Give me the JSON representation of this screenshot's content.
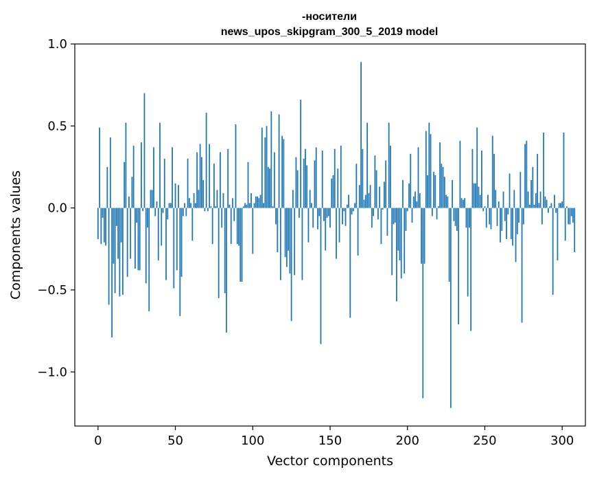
{
  "chart_data": {
    "type": "bar",
    "title_lines": [
      "-носители",
      "news_upos_skipgram_300_5_2019 model"
    ],
    "xlabel": "Vector components",
    "ylabel": "Components values",
    "xlim": [
      -15,
      315
    ],
    "ylim": [
      -1.33,
      1.0
    ],
    "x_ticks": [
      {
        "value": 0,
        "label": "0"
      },
      {
        "value": 50,
        "label": "50"
      },
      {
        "value": 100,
        "label": "100"
      },
      {
        "value": 150,
        "label": "150"
      },
      {
        "value": 200,
        "label": "200"
      },
      {
        "value": 250,
        "label": "250"
      },
      {
        "value": 300,
        "label": "300"
      }
    ],
    "y_ticks": [
      {
        "value": 1.0,
        "label": "1.0"
      },
      {
        "value": 0.5,
        "label": "0.5"
      },
      {
        "value": 0.0,
        "label": "0.0"
      },
      {
        "value": -0.5,
        "label": "−0.5"
      },
      {
        "value": -1.0,
        "label": "−1.0"
      }
    ],
    "grid": false,
    "bar_color": "#1f77b4",
    "values": [
      -0.19,
      0.49,
      -0.22,
      -0.06,
      -0.21,
      -0.23,
      0.25,
      -0.59,
      0.43,
      -0.79,
      -0.34,
      -0.52,
      -0.11,
      -0.31,
      -0.54,
      -0.21,
      -0.53,
      0.28,
      0.52,
      -0.42,
      0.07,
      -0.31,
      0.19,
      0.38,
      -0.37,
      -0.09,
      -0.38,
      -0.38,
      0.4,
      -0.02,
      0.7,
      -0.46,
      -0.12,
      -0.63,
      0.11,
      0.11,
      0.37,
      -0.05,
      0.04,
      -0.32,
      0.52,
      -0.23,
      -0.03,
      0.3,
      -0.44,
      -0.07,
      0.03,
      0.03,
      0.37,
      -0.49,
      0.15,
      -0.38,
      0.14,
      -0.66,
      -0.42,
      -0.05,
      0.03,
      -0.05,
      0.3,
      0.06,
      0.03,
      -0.2,
      0.09,
      0.03,
      0.34,
      0.11,
      0.39,
      0.31,
      0.17,
      -0.02,
      0.58,
      -0.02,
      0.39,
      0.01,
      -0.22,
      0.27,
      0.01,
      0.11,
      -0.55,
      0.34,
      -0.12,
      0.09,
      -0.52,
      -0.76,
      0.36,
      0.02,
      -0.22,
      0.06,
      -0.08,
      0.51,
      -0.22,
      -0.23,
      -0.45,
      -0.45,
      0.01,
      0.03,
      0.02,
      0.28,
      0.03,
      0.09,
      -0.28,
      0.03,
      0.07,
      0.07,
      0.06,
      0.08,
      0.49,
      0.03,
      0.43,
      0.5,
      0.25,
      0.24,
      0.59,
      0.01,
      0.34,
      -0.1,
      -0.27,
      0.57,
      -0.44,
      0.44,
      0.42,
      -0.3,
      -0.36,
      -0.26,
      -0.4,
      -0.69,
      0.11,
      -0.41,
      0.31,
      0.23,
      -0.06,
      0.66,
      -0.44,
      0.3,
      0.36,
      0.26,
      -0.21,
      0.11,
      0.03,
      -0.12,
      0.29,
      0.37,
      -0.13,
      -0.05,
      -0.83,
      0.35,
      -0.08,
      -0.26,
      -0.06,
      -0.05,
      -0.12,
      0.18,
      0.2,
      0.36,
      -0.31,
      0.24,
      -0.21,
      0.38,
      -0.1,
      -0.02,
      -0.11,
      0.02,
      0.08,
      -0.67,
      -0.04,
      -0.02,
      0.03,
      0.27,
      -0.29,
      0.14,
      0.89,
      0.36,
      0.05,
      0.08,
      0.52,
      0.09,
      0.14,
      -0.12,
      -0.05,
      0.32,
      0.23,
      -0.07,
      0.13,
      -0.22,
      -0.01,
      0.16,
      0.29,
      -0.17,
      0.52,
      0.38,
      -0.41,
      -0.1,
      -0.09,
      -0.57,
      -0.26,
      -0.32,
      -0.43,
      0.17,
      -0.4,
      -0.14,
      -0.02,
      0.15,
      0.33,
      -0.09,
      0.07,
      0.1,
      0.04,
      0.37,
      0.09,
      -0.34,
      -1.16,
      -0.34,
      0.47,
      0.2,
      0.52,
      0.45,
      -0.05,
      0.22,
      0.2,
      -0.07,
      0.01,
      0.4,
      0.27,
      0.25,
      0.19,
      0.08,
      0.07,
      -0.45,
      -1.22,
      0.17,
      -0.08,
      -0.11,
      -0.14,
      -0.71,
      0.41,
      0.06,
      0.05,
      0.06,
      -0.12,
      -0.54,
      -0.12,
      -0.75,
      0.36,
      0.15,
      0.15,
      0.49,
      0.13,
      0.08,
      0.35,
      -0.02,
      0.01,
      -0.12,
      0.08,
      -0.1,
      -0.13,
      0.44,
      0.33,
      0.11,
      -0.11,
      0.04,
      -0.21,
      -0.14,
      0.1,
      -0.08,
      -0.19,
      -0.04,
      0.21,
      -0.19,
      -0.23,
      0.11,
      -0.33,
      -0.16,
      -0.09,
      0.22,
      -0.7,
      -0.1,
      0.39,
      0.41,
      0.1,
      0.02,
      0.17,
      0.25,
      0.02,
      0.09,
      0.33,
      0.03,
      0.1,
      -0.1,
      0.46,
      0.07,
      0.05,
      -0.03,
      0.01,
      0.03,
      -0.53,
      0.08,
      -0.03,
      -0.32,
      0.03,
      0.03,
      0.04,
      0.46,
      -0.2,
      0.01,
      -0.1,
      -0.1,
      -0.05,
      -0.09,
      -0.27
    ]
  }
}
